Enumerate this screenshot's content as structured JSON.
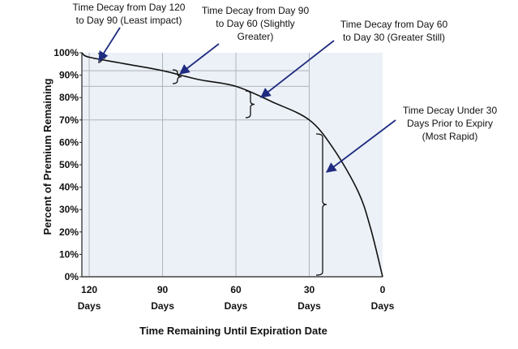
{
  "chart_data": {
    "type": "line",
    "xlabel": "Time Remaining Until Expiration Date",
    "ylabel": "Percent of Premium Remaining",
    "x_ticks": [
      {
        "value": 120,
        "num": "120",
        "unit": "Days"
      },
      {
        "value": 90,
        "num": "90",
        "unit": "Days"
      },
      {
        "value": 60,
        "num": "60",
        "unit": "Days"
      },
      {
        "value": 30,
        "num": "30",
        "unit": "Days"
      },
      {
        "value": 0,
        "num": "0",
        "unit": "Days"
      }
    ],
    "y_ticks": [
      "0%",
      "10%",
      "20%",
      "30%",
      "40%",
      "50%",
      "60%",
      "70%",
      "80%",
      "90%",
      "100%"
    ],
    "xlim": [
      0,
      123
    ],
    "ylim": [
      0,
      100
    ],
    "x_reversed": true,
    "grid": true,
    "series": [
      {
        "x": [
          123,
          120,
          105,
          90,
          75,
          60,
          45,
          30,
          20,
          10,
          5,
          0
        ],
        "values": [
          100,
          98,
          95,
          92,
          88,
          85,
          78,
          70,
          57,
          38,
          22,
          0
        ]
      }
    ],
    "annotations": [
      {
        "lines": [
          "Time Decay from Day 120",
          "to Day 90 (Least impact)"
        ]
      },
      {
        "lines": [
          "Time Decay from Day 90",
          "to Day 60 (Slightly",
          "Greater)"
        ]
      },
      {
        "lines": [
          "Time Decay from Day 60",
          "to Day 30 (Greater Still)"
        ]
      },
      {
        "lines": [
          "Time Decay Under 30",
          "Days Prior to Expiry",
          "(Most Rapid)"
        ]
      }
    ],
    "colors": {
      "plot_bg": "#ecf1f7",
      "curve": "#111111",
      "grid": "#aeb4bb",
      "arrow": "#1e2b80",
      "bracket": "#111111"
    }
  }
}
